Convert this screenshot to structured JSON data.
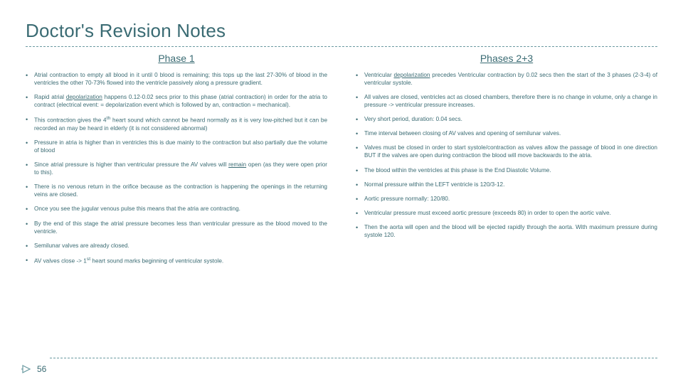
{
  "title": "Doctor's Revision Notes",
  "left": {
    "heading": "Phase 1",
    "items": [
      "Atrial contraction to empty all blood in it until 0 blood is remaining; this tops up the last 27-30% of blood in the ventricles the other 70-73% flowed into the ventricle passively along a pressure gradient.",
      "Rapid atrial <span class=\"u\">depolarization</span> happens 0.12-0.02 secs prior to this phase (atrial contraction) in order for the atria to contract (electrical event: = depolarization event which is followed by an, contraction = mechanical).",
      "This contraction gives the 4<sup>th</sup> heart sound which cannot be heard normally as it is very low-pitched but it can be recorded an may be heard in elderly (it is not considered abnormal)",
      "Pressure in atria is higher than in ventricles this is due mainly to the contraction but also partially due the volume of blood",
      "Since atrial pressure is higher than ventricular pressure the AV valves will <span class=\"u\">remain</span> open (as they were open prior to this).",
      "There is no venous return in the orifice because as the contraction is happening the openings in the returning veins are closed.",
      "Once you see the jugular venous pulse this means that the atria are contracting.",
      "By the end of this stage the atrial pressure becomes less than ventricular pressure as the blood moved to the ventricle.",
      "Semilunar valves are already closed.",
      "AV valves close -> 1<sup>st</sup> heart sound marks beginning of ventricular systole."
    ]
  },
  "right": {
    "heading": "Phases 2+3",
    "items": [
      "Ventricular <span class=\"u\">depolarization</span> precedes Ventricular contraction by 0.02 secs then the start of the 3 phases (2-3-4) of ventricular systole.",
      "All valves are closed, ventricles act as closed chambers, therefore there is no change in volume, only a change in pressure -> ventricular pressure increases.",
      "Very short period, duration: 0.04 secs.",
      "Time interval between closing of AV valves and opening of semilunar valves.",
      "Valves must be closed in order to start systole/contraction as valves allow the passage of blood in one direction BUT if the valves are open during contraction the blood will move backwards to the atria.",
      "The blood within the ventricles at this phase is the End Diastolic Volume.",
      "Normal pressure within the LEFT ventricle is 120/3-12.",
      "Aortic pressure normally: 120/80.",
      "Ventricular pressure must exceed aortic pressure (exceeds 80) in order to open the aortic valve.",
      "Then the aorta will open and the blood will be ejected rapidly through the aorta. With maximum pressure during systole 120."
    ]
  },
  "pageNumber": "56",
  "colors": {
    "accent": "#3a6b73",
    "dash": "#6a9aa1"
  }
}
